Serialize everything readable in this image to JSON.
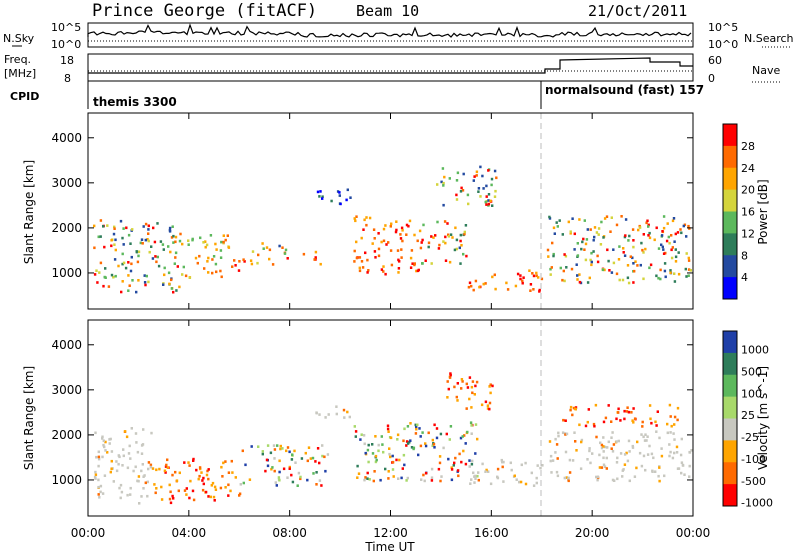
{
  "header": {
    "station": "Prince George (fitACF)",
    "beam": "Beam 10",
    "date": "21/Oct/2011"
  },
  "noise_panel": {
    "left_label": "N.Sky",
    "right_label": "N.Search",
    "left_ticks": [
      "10^5",
      "10^0"
    ],
    "right_ticks": [
      "10^5",
      "10^0"
    ]
  },
  "freq_panel": {
    "left_label_1": "Freq.",
    "left_label_2": "[MHz]",
    "left_ticks": [
      "18",
      "8"
    ],
    "right_label": "Nave",
    "right_ticks": [
      "60",
      "0"
    ]
  },
  "cpid": {
    "label": "CPID",
    "programs": [
      {
        "name": "themis 3300",
        "start_hour": 0
      },
      {
        "name": "normalsound (fast) 157",
        "start_hour": 18.1
      }
    ]
  },
  "chart_data": [
    {
      "type": "heatmap",
      "quantity": "Power",
      "colorbar_label": "Power [dB]",
      "colorbar_ticks": [
        "28",
        "24",
        "20",
        "16",
        "12",
        "8",
        "4"
      ],
      "colorbar_colors": [
        "#ff0000",
        "#ff6a00",
        "#ffa500",
        "#d4d43c",
        "#5cb85c",
        "#2e7d5a",
        "#234aa0",
        "#0000ff"
      ],
      "ylabel": "Slant Range [km]",
      "yticks": [
        "4000",
        "3000",
        "2000",
        "1000"
      ],
      "ylim": [
        200,
        4550
      ],
      "xlim": [
        0,
        24
      ],
      "regions": [
        {
          "t0": 0.2,
          "t1": 3.6,
          "r0": 600,
          "r1": 2200,
          "level": "mix"
        },
        {
          "t0": 3.6,
          "t1": 5.6,
          "r0": 900,
          "r1": 1900,
          "level": "mid"
        },
        {
          "t0": 5.6,
          "t1": 6.2,
          "r0": 1000,
          "r1": 1500,
          "level": "high"
        },
        {
          "t0": 6.3,
          "t1": 7.3,
          "r0": 1200,
          "r1": 1700,
          "level": "mid"
        },
        {
          "t0": 7.4,
          "t1": 7.9,
          "r0": 1200,
          "r1": 1700,
          "level": "mix"
        },
        {
          "t0": 8.5,
          "t1": 9.2,
          "r0": 1100,
          "r1": 1500,
          "level": "high"
        },
        {
          "t0": 10.5,
          "t1": 13.2,
          "r0": 1000,
          "r1": 2300,
          "level": "high"
        },
        {
          "t0": 13.2,
          "t1": 15.0,
          "r0": 1200,
          "r1": 2200,
          "level": "mix"
        },
        {
          "t0": 15.0,
          "t1": 18.0,
          "r0": 600,
          "r1": 1100,
          "level": "high"
        },
        {
          "t0": 18.2,
          "t1": 23.9,
          "r0": 800,
          "r1": 2300,
          "level": "mix"
        },
        {
          "t0": 8.9,
          "t1": 10.5,
          "r0": 2500,
          "r1": 2900,
          "level": "low"
        },
        {
          "t0": 13.8,
          "t1": 16.2,
          "r0": 2500,
          "r1": 3400,
          "level": "mix"
        }
      ]
    },
    {
      "type": "heatmap",
      "quantity": "Velocity",
      "colorbar_label": "Velocity [m s^-1]",
      "colorbar_ticks": [
        "1000",
        "500",
        "100",
        "25",
        "-25",
        "-100",
        "-500",
        "-1000"
      ],
      "colorbar_colors": [
        "#1f3fa8",
        "#2e7d5a",
        "#5cb85c",
        "#a8d96a",
        "#c8c8c0",
        "#ffa500",
        "#ff6a00",
        "#ff0000"
      ],
      "ylabel": "Slant Range [km]",
      "yticks": [
        "4000",
        "3000",
        "2000",
        "1000"
      ],
      "ylim": [
        200,
        4550
      ],
      "xlim": [
        0,
        24
      ],
      "regions": [
        {
          "t0": 0.2,
          "t1": 2.5,
          "r0": 500,
          "r1": 2200,
          "level": "grey"
        },
        {
          "t0": 2.5,
          "t1": 6.0,
          "r0": 500,
          "r1": 1500,
          "level": "neg"
        },
        {
          "t0": 6.0,
          "t1": 9.5,
          "r0": 900,
          "r1": 1800,
          "level": "mix"
        },
        {
          "t0": 8.9,
          "t1": 10.5,
          "r0": 2400,
          "r1": 2700,
          "level": "grey"
        },
        {
          "t0": 10.5,
          "t1": 15.5,
          "r0": 1000,
          "r1": 2300,
          "level": "mix"
        },
        {
          "t0": 15.0,
          "t1": 18.0,
          "r0": 900,
          "r1": 1500,
          "level": "grey"
        },
        {
          "t0": 18.2,
          "t1": 23.9,
          "r0": 1000,
          "r1": 2100,
          "level": "grey"
        },
        {
          "t0": 18.8,
          "t1": 23.5,
          "r0": 2200,
          "r1": 2700,
          "level": "neg"
        },
        {
          "t0": 14.0,
          "t1": 16.0,
          "r0": 2600,
          "r1": 3400,
          "level": "neg"
        }
      ]
    }
  ],
  "xaxis": {
    "label": "Time UT",
    "ticks": [
      "00:00",
      "04:00",
      "08:00",
      "12:00",
      "16:00",
      "20:00",
      "00:00"
    ],
    "range_hours": [
      0,
      24
    ]
  },
  "colors": {
    "axis": "#000000",
    "program_change_line": "#bdbdbd"
  }
}
